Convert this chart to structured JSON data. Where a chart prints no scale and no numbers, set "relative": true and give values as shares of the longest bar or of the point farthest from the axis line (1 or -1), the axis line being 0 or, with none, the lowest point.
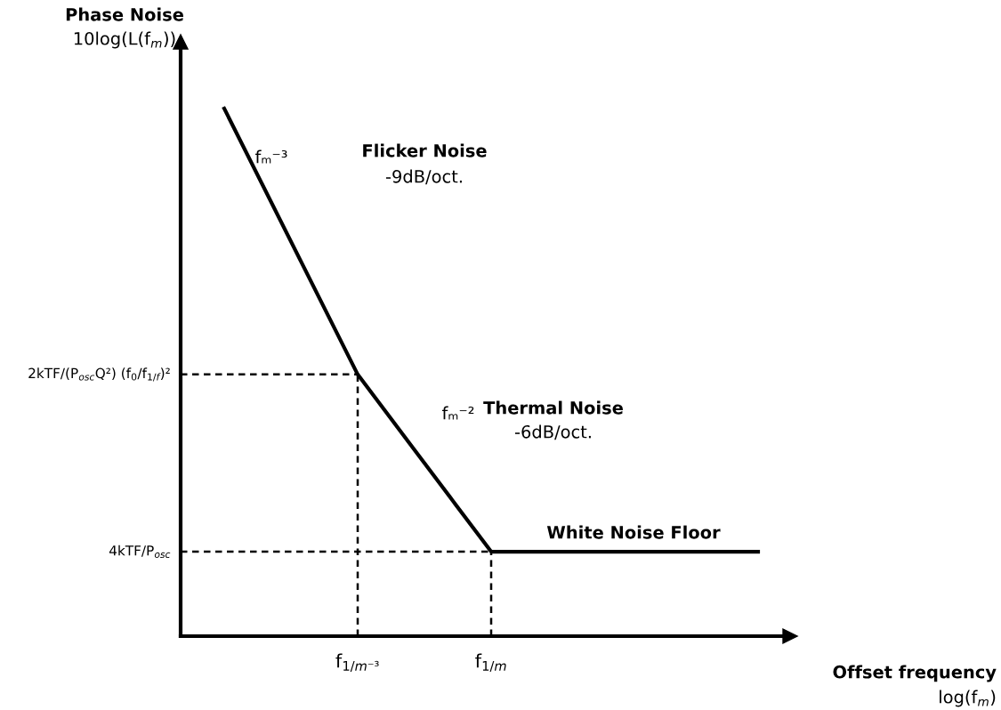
{
  "chart_data": {
    "type": "line",
    "relative": true,
    "xlabel": "Offset frequency\nlog(f$_{m}$)",
    "ylabel": "Phase Noise\n10log(L(f$_{m}$))",
    "categories": [
      null,
      "f$_{1/m⁻³}$",
      "f$_{1/m}$",
      null,
      null
    ],
    "series": [
      {
        "color": "#000000",
        "values": [
          1,
          0.496,
          0.16,
          0.16,
          0.16
        ]
      }
    ],
    "line_style": "solid",
    "grid": false,
    "ref_lines": [
      {
        "axis": "y",
        "value": 0.496,
        "label": "2kTF/(P$_{osc}$Q²) (f$_{0}$/f$_{1/f}$)²",
        "line_style": "dashed",
        "color": "#000000"
      },
      {
        "axis": "y",
        "value": 0.16,
        "label": "4kTF/P$_{osc}$",
        "line_style": "dashed",
        "color": "#000000"
      },
      {
        "axis": "x",
        "value": "f$_{1/m⁻³}$",
        "line_style": "dashed",
        "color": "#000000"
      },
      {
        "axis": "x",
        "value": "f$_{1/m}$",
        "line_style": "dashed",
        "color": "#000000"
      }
    ],
    "annotations": [
      "Flicker Noise",
      "-9dB/oct.",
      "fₘ⁻³",
      "Thermal Noise",
      "-6dB/oct.",
      "fₘ⁻²",
      "White Noise Floor"
    ]
  }
}
